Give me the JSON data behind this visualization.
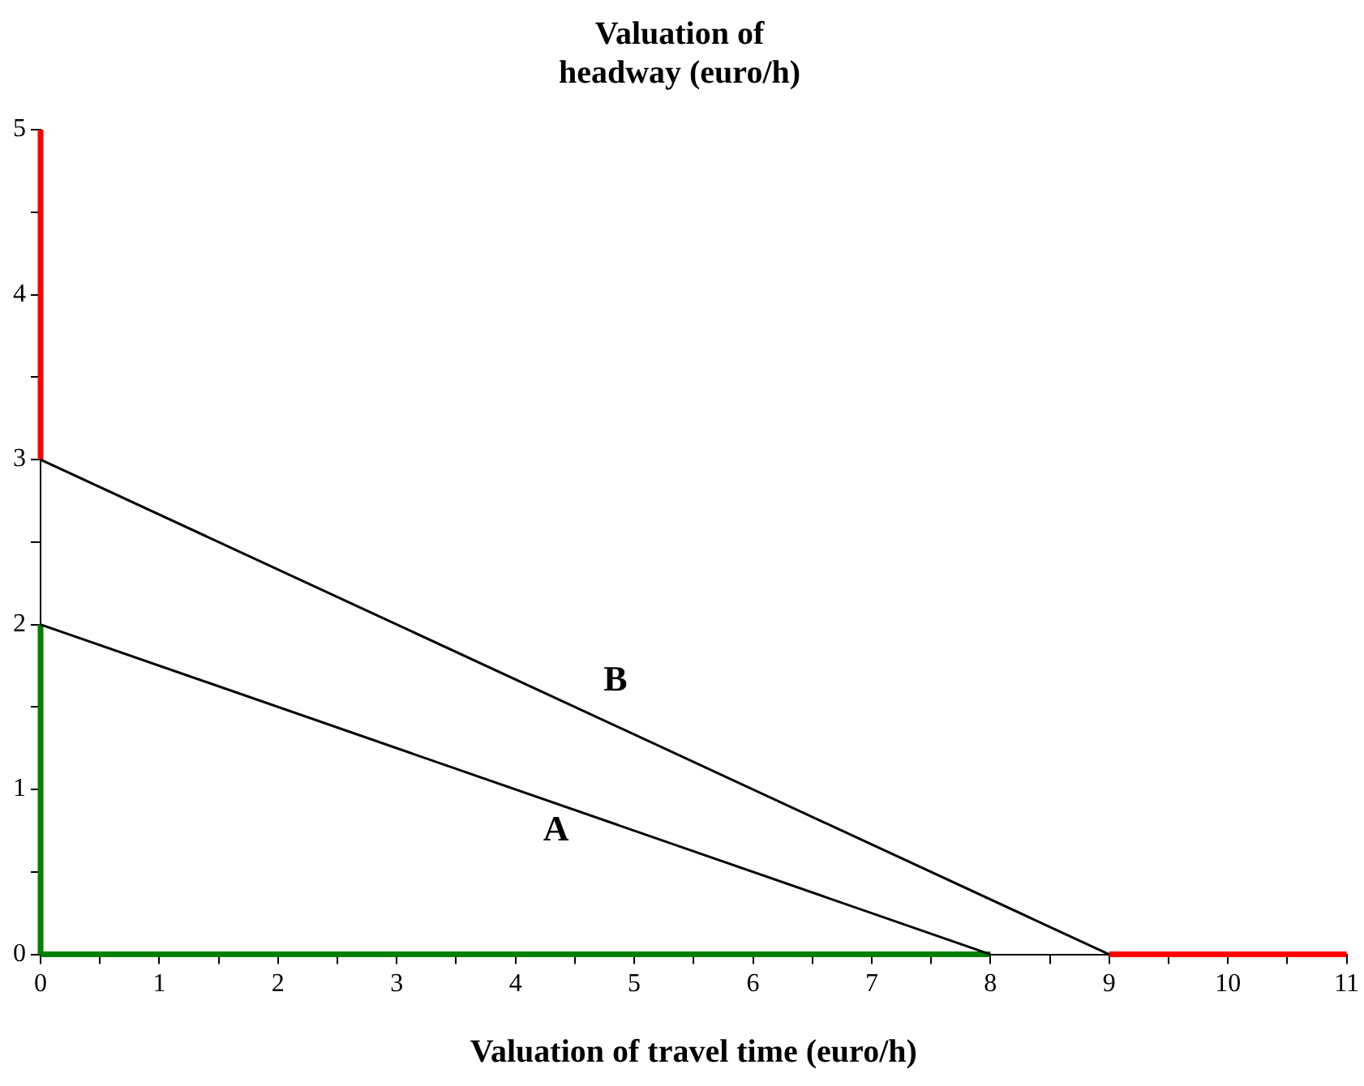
{
  "chart_data": {
    "type": "line",
    "title": "Valuation of\nheadway (euro/h)",
    "xlabel": "Valuation of travel time (euro/h)",
    "series": [
      {
        "name": "A",
        "color": "#000000",
        "x": [
          0,
          8
        ],
        "values": [
          2,
          0
        ]
      },
      {
        "name": "B",
        "color": "#000000",
        "x": [
          0,
          9
        ],
        "values": [
          3,
          0
        ]
      },
      {
        "color": "#008000",
        "x": [
          0,
          0
        ],
        "values": [
          0,
          2
        ]
      },
      {
        "color": "#008000",
        "x": [
          0,
          8
        ],
        "values": [
          0,
          0
        ]
      },
      {
        "color": "#ff0000",
        "x": [
          0,
          0
        ],
        "values": [
          3,
          5
        ]
      },
      {
        "color": "#ff0000",
        "x": [
          9,
          11
        ],
        "values": [
          0,
          0
        ]
      }
    ],
    "xlim": [
      0,
      11
    ],
    "xticks": [
      0,
      {
        "value": 0.5,
        "label": null
      },
      1,
      {
        "value": 1.5,
        "label": null
      },
      2,
      {
        "value": 2.5,
        "label": null
      },
      3,
      {
        "value": 3.5,
        "label": null
      },
      4,
      {
        "value": 4.5,
        "label": null
      },
      5,
      {
        "value": 5.5,
        "label": null
      },
      6,
      {
        "value": 6.5,
        "label": null
      },
      7,
      {
        "value": 7.5,
        "label": null
      },
      8,
      {
        "value": 8.5,
        "label": null
      },
      9,
      {
        "value": 9.5,
        "label": null
      },
      10,
      {
        "value": 10.5,
        "label": null
      },
      11
    ],
    "ylim": [
      0,
      5
    ],
    "yticks": [
      0,
      {
        "value": 0.5,
        "label": null
      },
      1,
      {
        "value": 1.5,
        "label": null
      },
      2,
      {
        "value": 2.5,
        "label": null
      },
      3,
      {
        "value": 3.5,
        "label": null
      },
      4,
      {
        "value": 4.5,
        "label": null
      },
      5
    ],
    "grid": false,
    "legend": false,
    "marker": "none",
    "line_style": "solid"
  }
}
